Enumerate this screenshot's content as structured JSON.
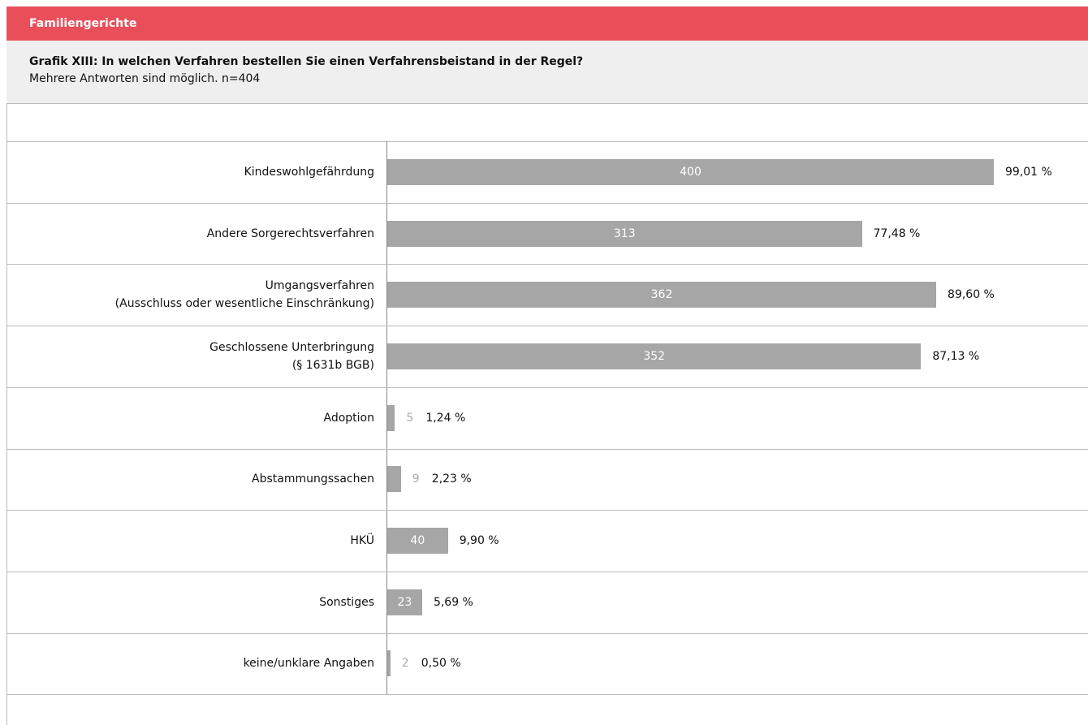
{
  "header": {
    "section": "Familiengerichte",
    "title": "Grafik XIII: In welchen Verfahren bestellen Sie einen Verfahrensbeistand in der Regel?",
    "subtitle": "Mehrere Antworten sind möglich. n=404"
  },
  "chart_data": {
    "type": "bar",
    "orientation": "horizontal",
    "color": "#a6a6a6",
    "categories": [
      "Kindeswohlgefährdung",
      "Andere Sorgerechtsverfahren",
      "Umgangsverfahren\n(Ausschluss oder wesentliche Einschränkung)",
      "Geschlossene Unterbringung\n(§ 1631b BGB)",
      "Adoption",
      "Abstammungssachen",
      "HKÜ",
      "Sonstiges",
      "keine/unklare Angaben"
    ],
    "values": [
      400,
      313,
      362,
      352,
      5,
      9,
      40,
      23,
      2
    ],
    "percentages": [
      99.01,
      77.48,
      89.6,
      87.13,
      1.24,
      2.23,
      9.9,
      5.69,
      0.5
    ],
    "percentage_labels": [
      "99,01 %",
      "77,48 %",
      "89,60 %",
      "87,13 %",
      "1,24 %",
      "2,23 %",
      "9,90 %",
      "5,69 %",
      "0,50 %"
    ]
  }
}
